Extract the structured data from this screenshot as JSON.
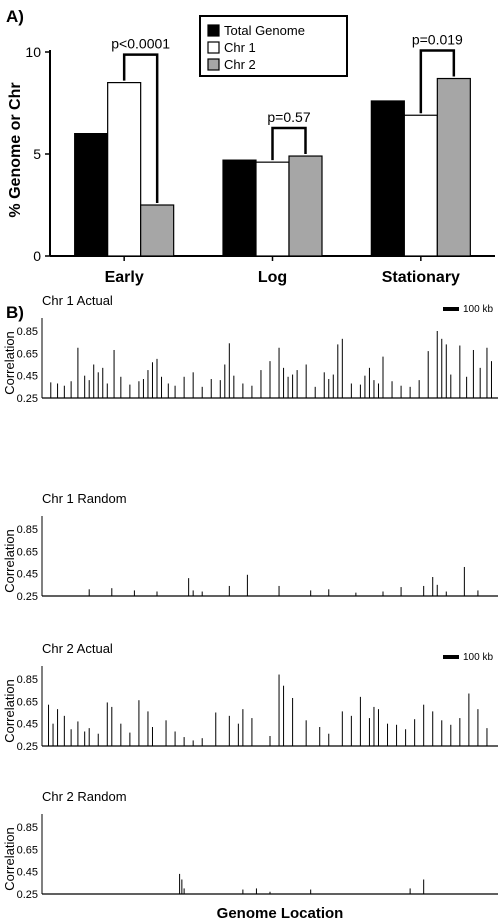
{
  "panel_a": {
    "label": "A)",
    "ylabel": "% Genome or Chr",
    "legend": [
      "Total Genome",
      "Chr 1",
      "Chr 2"
    ],
    "annotations": [
      "p<0.0001",
      "p=0.57",
      "p=0.019"
    ]
  },
  "panel_b": {
    "label": "B)",
    "xlabel": "Genome Location",
    "scale_bar_label": "100 kb",
    "ylabel": "Correlation"
  },
  "colors": {
    "total_genome": "#000000",
    "chr1": "#ffffff",
    "chr2": "#a6a6a6"
  },
  "chart_data": [
    {
      "type": "bar",
      "title": "",
      "ylabel": "% Genome or Chr",
      "categories": [
        "Early",
        "Log",
        "Stationary"
      ],
      "series": [
        {
          "name": "Total Genome",
          "values": [
            6.0,
            4.7,
            7.6
          ]
        },
        {
          "name": "Chr 1",
          "values": [
            8.5,
            4.6,
            6.9
          ]
        },
        {
          "name": "Chr 2",
          "values": [
            2.5,
            4.9,
            8.7
          ]
        }
      ],
      "ylim": [
        0,
        10
      ],
      "yticks": [
        0,
        5,
        10
      ],
      "legend_position": "top-center",
      "grid": false,
      "annotations": [
        {
          "text": "p<0.0001",
          "category": "Early",
          "compares": [
            "Chr 1",
            "Chr 2"
          ]
        },
        {
          "text": "p=0.57",
          "category": "Log",
          "compares": [
            "Chr 1",
            "Chr 2"
          ]
        },
        {
          "text": "p=0.019",
          "category": "Stationary",
          "compares": [
            "Chr 1",
            "Chr 2"
          ]
        }
      ]
    },
    {
      "type": "bar",
      "title": "Chr 1 Actual",
      "ylabel": "Correlation",
      "ylim": [
        0.25,
        0.9
      ],
      "yticks": [
        0.25,
        0.45,
        0.65,
        0.85
      ],
      "scale_bar": "100 kb",
      "x": [
        0.015,
        0.03,
        0.045,
        0.06,
        0.075,
        0.09,
        0.1,
        0.11,
        0.12,
        0.13,
        0.14,
        0.155,
        0.17,
        0.19,
        0.21,
        0.22,
        0.23,
        0.24,
        0.25,
        0.26,
        0.275,
        0.29,
        0.31,
        0.33,
        0.35,
        0.37,
        0.39,
        0.4,
        0.41,
        0.42,
        0.44,
        0.46,
        0.48,
        0.5,
        0.52,
        0.53,
        0.54,
        0.55,
        0.56,
        0.58,
        0.6,
        0.62,
        0.63,
        0.64,
        0.65,
        0.66,
        0.68,
        0.7,
        0.71,
        0.72,
        0.73,
        0.74,
        0.75,
        0.77,
        0.79,
        0.81,
        0.83,
        0.85,
        0.87,
        0.88,
        0.89,
        0.9,
        0.92,
        0.935,
        0.95,
        0.965,
        0.98,
        0.99
      ],
      "values": [
        0.39,
        0.38,
        0.36,
        0.4,
        0.7,
        0.45,
        0.41,
        0.55,
        0.48,
        0.52,
        0.38,
        0.68,
        0.44,
        0.37,
        0.4,
        0.42,
        0.5,
        0.57,
        0.6,
        0.44,
        0.38,
        0.36,
        0.44,
        0.48,
        0.35,
        0.42,
        0.41,
        0.55,
        0.74,
        0.45,
        0.38,
        0.36,
        0.5,
        0.58,
        0.7,
        0.52,
        0.44,
        0.46,
        0.5,
        0.55,
        0.35,
        0.48,
        0.42,
        0.46,
        0.73,
        0.78,
        0.38,
        0.37,
        0.45,
        0.52,
        0.41,
        0.38,
        0.62,
        0.4,
        0.36,
        0.35,
        0.41,
        0.67,
        0.85,
        0.78,
        0.73,
        0.46,
        0.72,
        0.44,
        0.68,
        0.52,
        0.7,
        0.58
      ]
    },
    {
      "type": "bar",
      "title": "Chr 1 Random",
      "ylabel": "Correlation",
      "ylim": [
        0.25,
        0.9
      ],
      "yticks": [
        0.25,
        0.45,
        0.65,
        0.85
      ],
      "x": [
        0.1,
        0.15,
        0.2,
        0.25,
        0.32,
        0.33,
        0.35,
        0.41,
        0.45,
        0.52,
        0.59,
        0.63,
        0.69,
        0.75,
        0.79,
        0.84,
        0.86,
        0.87,
        0.89,
        0.93,
        0.96
      ],
      "values": [
        0.31,
        0.32,
        0.3,
        0.29,
        0.41,
        0.3,
        0.29,
        0.34,
        0.44,
        0.34,
        0.3,
        0.31,
        0.28,
        0.29,
        0.33,
        0.34,
        0.42,
        0.35,
        0.29,
        0.51,
        0.3
      ]
    },
    {
      "type": "bar",
      "title": "Chr 2 Actual",
      "ylabel": "Correlation",
      "ylim": [
        0.25,
        0.9
      ],
      "yticks": [
        0.25,
        0.45,
        0.65,
        0.85
      ],
      "scale_bar": "100 kb",
      "x": [
        0.01,
        0.02,
        0.03,
        0.045,
        0.06,
        0.075,
        0.09,
        0.1,
        0.12,
        0.14,
        0.15,
        0.17,
        0.19,
        0.21,
        0.23,
        0.24,
        0.27,
        0.29,
        0.31,
        0.33,
        0.35,
        0.38,
        0.41,
        0.43,
        0.44,
        0.46,
        0.5,
        0.52,
        0.53,
        0.55,
        0.58,
        0.61,
        0.63,
        0.66,
        0.68,
        0.7,
        0.72,
        0.73,
        0.74,
        0.76,
        0.78,
        0.8,
        0.82,
        0.84,
        0.86,
        0.88,
        0.9,
        0.92,
        0.94,
        0.96,
        0.98
      ],
      "values": [
        0.62,
        0.45,
        0.58,
        0.52,
        0.4,
        0.47,
        0.38,
        0.41,
        0.36,
        0.64,
        0.6,
        0.45,
        0.37,
        0.66,
        0.56,
        0.42,
        0.48,
        0.38,
        0.33,
        0.3,
        0.32,
        0.55,
        0.52,
        0.45,
        0.58,
        0.5,
        0.34,
        0.89,
        0.79,
        0.68,
        0.48,
        0.42,
        0.36,
        0.56,
        0.52,
        0.69,
        0.5,
        0.6,
        0.58,
        0.45,
        0.44,
        0.4,
        0.49,
        0.62,
        0.56,
        0.48,
        0.44,
        0.5,
        0.72,
        0.58,
        0.41
      ]
    },
    {
      "type": "bar",
      "title": "Chr 2 Random",
      "ylabel": "Correlation",
      "ylim": [
        0.25,
        0.9
      ],
      "yticks": [
        0.25,
        0.45,
        0.65,
        0.85
      ],
      "x": [
        0.3,
        0.305,
        0.31,
        0.44,
        0.47,
        0.5,
        0.59,
        0.81,
        0.84
      ],
      "values": [
        0.43,
        0.38,
        0.3,
        0.29,
        0.3,
        0.27,
        0.29,
        0.3,
        0.38
      ]
    }
  ]
}
